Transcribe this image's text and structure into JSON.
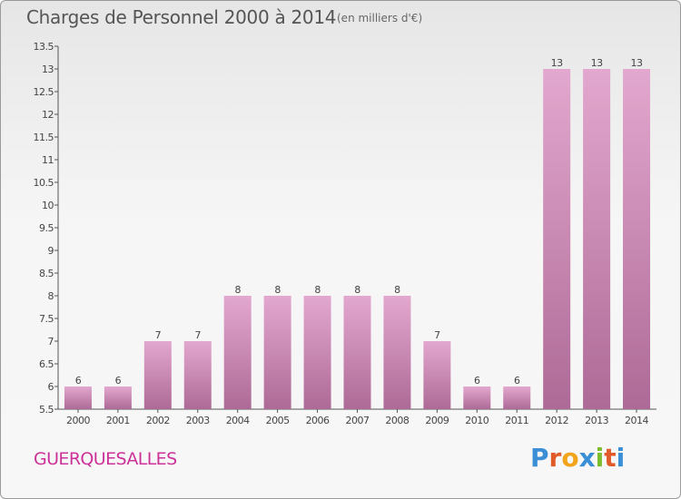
{
  "header": {
    "title": "Charges de Personnel 2000 à 2014",
    "unit": "(en milliers d'€)"
  },
  "footer": {
    "commune": "GUERQUESALLES",
    "logo_letters": [
      "P",
      "r",
      "o",
      "x",
      "i",
      "t",
      "i"
    ]
  },
  "colors": {
    "bar_top": "#e3a8cf",
    "bar_bottom": "#ad6a96",
    "commune": "#cc3399",
    "logo": [
      "#3a8fd6",
      "#e05a2a",
      "#f2a41c",
      "#3a8fd6",
      "#7cbd2f",
      "#e05a2a",
      "#3a8fd6"
    ]
  },
  "chart_data": {
    "type": "bar",
    "title": "Charges de Personnel 2000 à 2014",
    "categories": [
      "2000",
      "2001",
      "2002",
      "2003",
      "2004",
      "2005",
      "2006",
      "2007",
      "2008",
      "2009",
      "2010",
      "2011",
      "2012",
      "2013",
      "2014"
    ],
    "values": [
      6,
      6,
      7,
      7,
      8,
      8,
      8,
      8,
      8,
      7,
      6,
      6,
      13,
      13,
      13
    ],
    "ylim": [
      5.5,
      13.5
    ],
    "yticks": [
      "5.5",
      "6",
      "6.5",
      "7",
      "7.5",
      "8",
      "8.5",
      "9",
      "9.5",
      "10",
      "10.5",
      "11",
      "11.5",
      "12",
      "12.5",
      "13",
      "13.5"
    ],
    "grid": false
  }
}
